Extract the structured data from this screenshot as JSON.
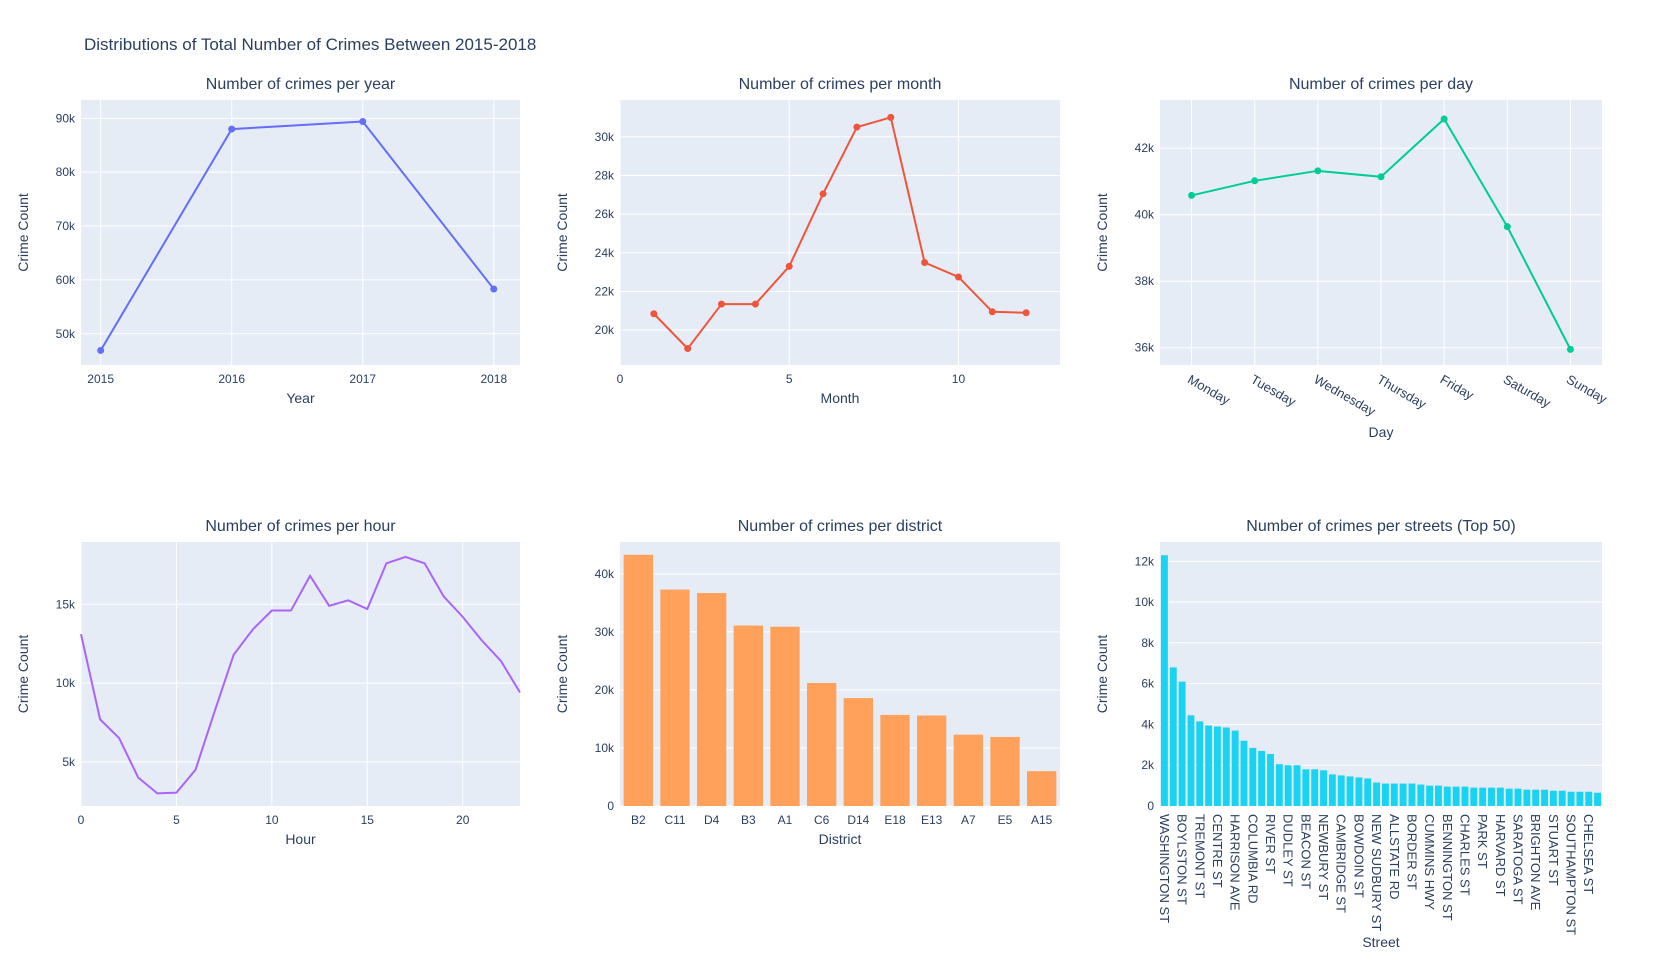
{
  "figure": {
    "title": "Distributions of Total Number of Crimes Between 2015-2018",
    "colors": {
      "plot_bg": "#E5ECF6",
      "grid": "#ffffff",
      "text": "#2a3f5f"
    }
  },
  "chart_data": [
    {
      "id": "year",
      "type": "line",
      "title": "Number of crimes per year",
      "xlabel": "Year",
      "ylabel": "Crime Count",
      "x": [
        2015,
        2016,
        2017,
        2018
      ],
      "values": [
        46900,
        88000,
        89400,
        58300
      ],
      "xlim": [
        2014.85,
        2018.2
      ],
      "ylim": [
        44200,
        93400
      ],
      "xticks": [
        2015,
        2016,
        2017,
        2018
      ],
      "xtick_labels": [
        "2015",
        "2016",
        "2017",
        "2018"
      ],
      "yticks": [
        50000,
        60000,
        70000,
        80000,
        90000
      ],
      "ytick_labels": [
        "50k",
        "60k",
        "70k",
        "80k",
        "90k"
      ],
      "markers": true,
      "color": "#636EFA"
    },
    {
      "id": "month",
      "type": "line",
      "title": "Number of crimes per month",
      "xlabel": "Month",
      "ylabel": "Crime Count",
      "x": [
        1,
        2,
        3,
        4,
        5,
        6,
        7,
        8,
        9,
        10,
        11,
        12
      ],
      "values": [
        20850,
        19050,
        21350,
        21350,
        23300,
        27050,
        30500,
        31000,
        23500,
        22750,
        20950,
        20900
      ],
      "xlim": [
        0,
        13
      ],
      "ylim": [
        18200,
        31900
      ],
      "xticks": [
        0,
        5,
        10
      ],
      "xtick_labels": [
        "0",
        "5",
        "10"
      ],
      "yticks": [
        20000,
        22000,
        24000,
        26000,
        28000,
        30000
      ],
      "ytick_labels": [
        "20k",
        "22k",
        "24k",
        "26k",
        "28k",
        "30k"
      ],
      "markers": true,
      "color": "#EF553B"
    },
    {
      "id": "day",
      "type": "line",
      "title": "Number of crimes per day",
      "xlabel": "Day",
      "ylabel": "Crime Count",
      "categories": [
        "Monday",
        "Tuesday",
        "Wednesday",
        "Thursday",
        "Friday",
        "Saturday",
        "Sunday"
      ],
      "values": [
        40580,
        41020,
        41320,
        41140,
        42880,
        39640,
        35950
      ],
      "ylim": [
        35480,
        43450
      ],
      "yticks": [
        36000,
        38000,
        40000,
        42000
      ],
      "ytick_labels": [
        "36k",
        "38k",
        "40k",
        "42k"
      ],
      "markers": true,
      "rotate_xticks": true,
      "color": "#00CC96"
    },
    {
      "id": "hour",
      "type": "line",
      "title": "Number of crimes per hour",
      "xlabel": "Hour",
      "ylabel": "Crime Count",
      "x": [
        0,
        1,
        2,
        3,
        4,
        5,
        6,
        7,
        8,
        9,
        10,
        11,
        12,
        13,
        14,
        15,
        16,
        17,
        18,
        19,
        20,
        21,
        22,
        23
      ],
      "values": [
        13100,
        7700,
        6500,
        4000,
        3000,
        3050,
        4500,
        8200,
        11800,
        13400,
        14600,
        14600,
        16800,
        14900,
        15250,
        14700,
        17600,
        18000,
        17600,
        15500,
        14200,
        12700,
        11400,
        9400
      ],
      "xlim": [
        0,
        23
      ],
      "ylim": [
        2200,
        18950
      ],
      "xticks": [
        0,
        5,
        10,
        15,
        20
      ],
      "xtick_labels": [
        "0",
        "5",
        "10",
        "15",
        "20"
      ],
      "yticks": [
        5000,
        10000,
        15000
      ],
      "ytick_labels": [
        "5k",
        "10k",
        "15k"
      ],
      "markers": false,
      "color": "#AB63FA"
    },
    {
      "id": "district",
      "type": "bar",
      "title": "Number of crimes per district",
      "xlabel": "District",
      "ylabel": "Crime Count",
      "categories": [
        "B2",
        "C11",
        "D4",
        "B3",
        "A1",
        "C6",
        "D14",
        "E18",
        "E13",
        "A7",
        "E5",
        "A15"
      ],
      "values": [
        43300,
        37300,
        36700,
        31100,
        30900,
        21200,
        18600,
        15700,
        15600,
        12300,
        11900,
        6000
      ],
      "ylim": [
        0,
        45500
      ],
      "yticks": [
        0,
        10000,
        20000,
        30000,
        40000
      ],
      "ytick_labels": [
        "0",
        "10k",
        "20k",
        "30k",
        "40k"
      ],
      "color": "#FFA15A"
    },
    {
      "id": "streets",
      "type": "bar",
      "title": "Number of crimes per streets (Top 50)",
      "xlabel": "Street",
      "ylabel": "Crime Count",
      "categories": [
        "WASHINGTON ST",
        "",
        "BOYLSTON ST",
        "",
        "TREMONT ST",
        "",
        "CENTRE ST",
        "",
        "HARRISON AVE",
        "",
        "COLUMBIA RD",
        "",
        "RIVER ST",
        "",
        "DUDLEY ST",
        "",
        "BEACON ST",
        "",
        "NEWBURY ST",
        "",
        "CAMBRIDGE ST",
        "",
        "BOWDOIN ST",
        "",
        "NEW SUDBURY ST",
        "",
        "ALLSTATE RD",
        "",
        "BORDER ST",
        "",
        "CUMMINS HWY",
        "",
        "BENNINGTON ST",
        "",
        "CHARLES ST",
        "",
        "PARK ST",
        "",
        "HARVARD ST",
        "",
        "SARATOGA ST",
        "",
        "BRIGHTON AVE",
        "",
        "STUART ST",
        "",
        "SOUTHAMPTON ST",
        "",
        "CHELSEA ST",
        ""
      ],
      "values": [
        12300,
        6800,
        6100,
        4450,
        4150,
        3950,
        3900,
        3850,
        3700,
        3200,
        2850,
        2700,
        2550,
        2050,
        2000,
        2000,
        1800,
        1800,
        1750,
        1550,
        1500,
        1450,
        1400,
        1350,
        1150,
        1100,
        1100,
        1100,
        1100,
        1050,
        1000,
        1000,
        950,
        950,
        950,
        900,
        900,
        900,
        900,
        850,
        850,
        800,
        800,
        800,
        750,
        750,
        700,
        700,
        700,
        650
      ],
      "ylim": [
        0,
        12950
      ],
      "yticks": [
        0,
        2000,
        4000,
        6000,
        8000,
        10000,
        12000
      ],
      "ytick_labels": [
        "0",
        "2k",
        "4k",
        "6k",
        "8k",
        "10k",
        "12k"
      ],
      "rotate_xticks_vertical": true,
      "color": "#19D3F3"
    }
  ]
}
